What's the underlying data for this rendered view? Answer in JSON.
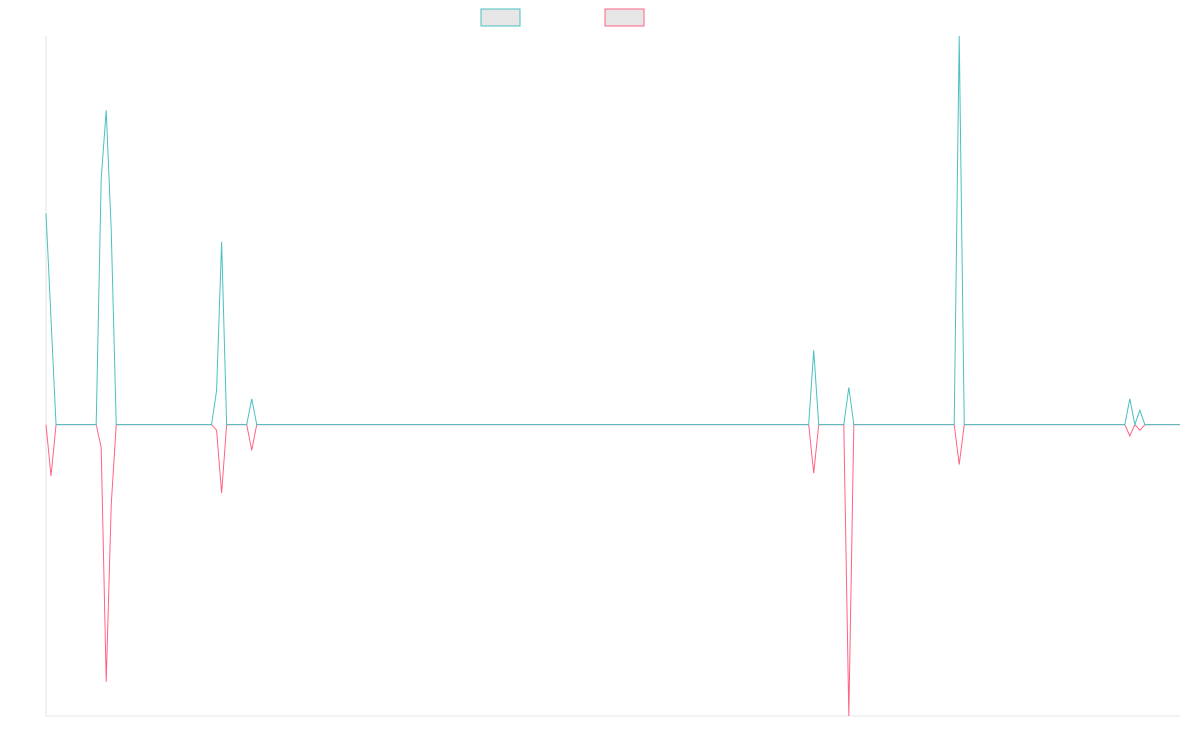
{
  "chart_data": {
    "type": "line",
    "title": "",
    "xlabel": "",
    "ylabel": "",
    "grid": false,
    "legend": "top-center",
    "x_count": 227,
    "y_range": [
      -51,
      68
    ],
    "series": [
      {
        "color": "#4bc0c0",
        "fill": "#e6e6e6",
        "points": [
          [
            0,
            37
          ],
          [
            2,
            0
          ],
          [
            10,
            0
          ],
          [
            11,
            43
          ],
          [
            12,
            55
          ],
          [
            13,
            34
          ],
          [
            14,
            0
          ],
          [
            33,
            0
          ],
          [
            34,
            6
          ],
          [
            35,
            32
          ],
          [
            36,
            0
          ],
          [
            40,
            0
          ],
          [
            41,
            4.5
          ],
          [
            42,
            0
          ],
          [
            152,
            0
          ],
          [
            153,
            13
          ],
          [
            154,
            0
          ],
          [
            159,
            0
          ],
          [
            160,
            6.5
          ],
          [
            161,
            0
          ],
          [
            181,
            0
          ],
          [
            182,
            68
          ],
          [
            183,
            0
          ],
          [
            215,
            0
          ],
          [
            216,
            4.5
          ],
          [
            217,
            0
          ],
          [
            218,
            2.5
          ],
          [
            219,
            0
          ],
          [
            226,
            0
          ]
        ]
      },
      {
        "color": "#ff6384",
        "fill": "#e6e6e6",
        "points": [
          [
            0,
            0
          ],
          [
            1,
            -9
          ],
          [
            2,
            0
          ],
          [
            10,
            0
          ],
          [
            11,
            -4
          ],
          [
            12,
            -45
          ],
          [
            13,
            -14
          ],
          [
            14,
            0
          ],
          [
            33,
            0
          ],
          [
            34,
            -1
          ],
          [
            35,
            -12
          ],
          [
            36,
            0
          ],
          [
            40,
            0
          ],
          [
            41,
            -4.5
          ],
          [
            42,
            0
          ],
          [
            152,
            0
          ],
          [
            153,
            -8.5
          ],
          [
            154,
            0
          ],
          [
            159,
            0
          ],
          [
            160,
            -51
          ],
          [
            161,
            0
          ],
          [
            181,
            0
          ],
          [
            182,
            -7
          ],
          [
            183,
            0
          ],
          [
            215,
            0
          ],
          [
            216,
            -2
          ],
          [
            217,
            0
          ],
          [
            218,
            -1
          ],
          [
            219,
            0
          ],
          [
            226,
            0
          ]
        ]
      }
    ]
  }
}
